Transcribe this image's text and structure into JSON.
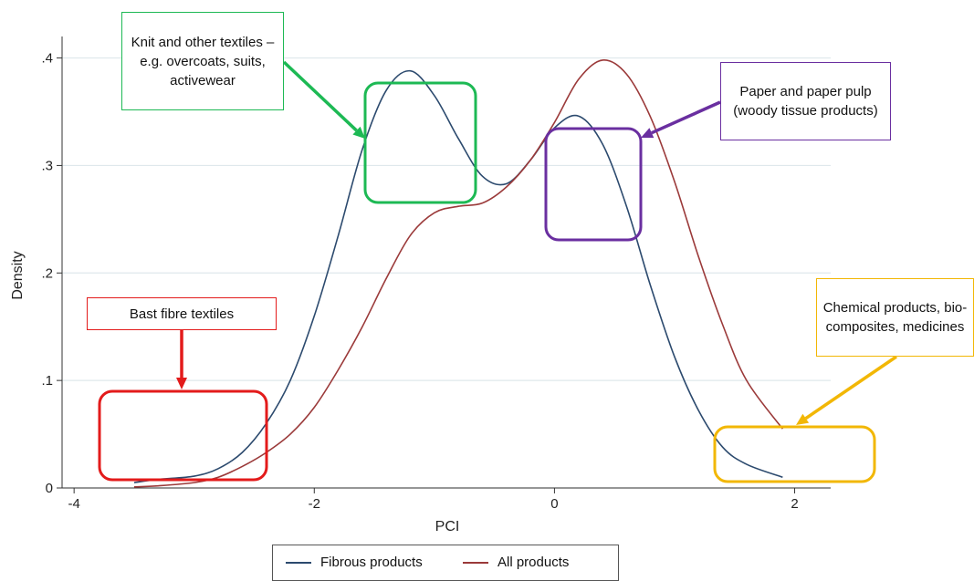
{
  "chart_data": {
    "type": "line",
    "xlabel": "PCI",
    "ylabel": "Density",
    "xlim": [
      -4.1,
      2.3
    ],
    "ylim": [
      0,
      0.42
    ],
    "x_ticks": [
      -4,
      -2,
      0,
      2
    ],
    "x_tick_labels": [
      "-4",
      "-2",
      "0",
      "2"
    ],
    "y_ticks": [
      0,
      0.1,
      0.2,
      0.3,
      0.4
    ],
    "y_tick_labels": [
      "0",
      ".1",
      ".2",
      ".3",
      ".4"
    ],
    "grid": "horizontal",
    "legend_position": "bottom",
    "series": [
      {
        "name": "Fibrous products",
        "color": "#2c4a6e",
        "x": [
          -3.5,
          -3.3,
          -3.0,
          -2.8,
          -2.6,
          -2.4,
          -2.2,
          -2.0,
          -1.8,
          -1.6,
          -1.4,
          -1.2,
          -1.0,
          -0.8,
          -0.6,
          -0.4,
          -0.2,
          0.0,
          0.2,
          0.4,
          0.6,
          0.8,
          1.0,
          1.2,
          1.4,
          1.6,
          1.9
        ],
        "y": [
          0.005,
          0.008,
          0.011,
          0.018,
          0.033,
          0.06,
          0.1,
          0.16,
          0.235,
          0.315,
          0.37,
          0.388,
          0.365,
          0.325,
          0.29,
          0.283,
          0.305,
          0.335,
          0.346,
          0.32,
          0.262,
          0.188,
          0.122,
          0.072,
          0.038,
          0.022,
          0.01
        ]
      },
      {
        "name": "All products",
        "color": "#9b3a3a",
        "x": [
          -3.5,
          -3.3,
          -3.0,
          -2.8,
          -2.6,
          -2.4,
          -2.2,
          -2.0,
          -1.8,
          -1.6,
          -1.4,
          -1.2,
          -1.0,
          -0.8,
          -0.6,
          -0.4,
          -0.2,
          0.0,
          0.2,
          0.4,
          0.6,
          0.8,
          1.0,
          1.2,
          1.4,
          1.6,
          1.9
        ],
        "y": [
          0.001,
          0.002,
          0.005,
          0.01,
          0.02,
          0.033,
          0.05,
          0.075,
          0.11,
          0.15,
          0.195,
          0.235,
          0.256,
          0.262,
          0.265,
          0.28,
          0.305,
          0.34,
          0.38,
          0.398,
          0.385,
          0.345,
          0.285,
          0.215,
          0.152,
          0.1,
          0.055
        ]
      }
    ],
    "annotations": [
      {
        "text": "Knit and other textiles – e.g. overcoats, suits, activewear",
        "color": "#1db954"
      },
      {
        "text": "Paper and paper pulp (woody tissue products)",
        "color": "#6a2fa0"
      },
      {
        "text": "Bast fibre textiles",
        "color": "#e31b1b"
      },
      {
        "text": "Chemical products, bio-composites, medicines",
        "color": "#f2b705"
      }
    ]
  }
}
